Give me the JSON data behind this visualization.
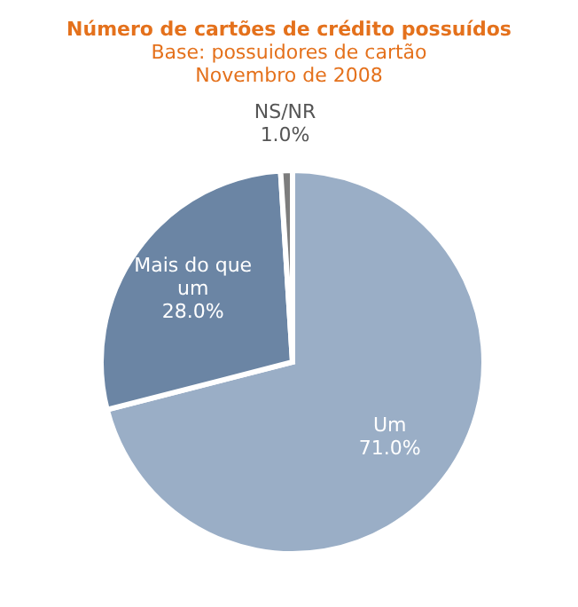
{
  "chart_data": {
    "type": "pie",
    "title": "Número de cartões de crédito possuídos",
    "subtitle": "Base: possuidores de cartão\nNovembro de 2008",
    "categories": [
      "Um",
      "Mais do que um",
      "NS/NR"
    ],
    "values": [
      71.0,
      28.0,
      1.0
    ],
    "colors": [
      "#9aaec6",
      "#6b85a4",
      "#7d7d7d"
    ],
    "value_labels": [
      "71.0%",
      "28.0%",
      "1.0%"
    ]
  }
}
